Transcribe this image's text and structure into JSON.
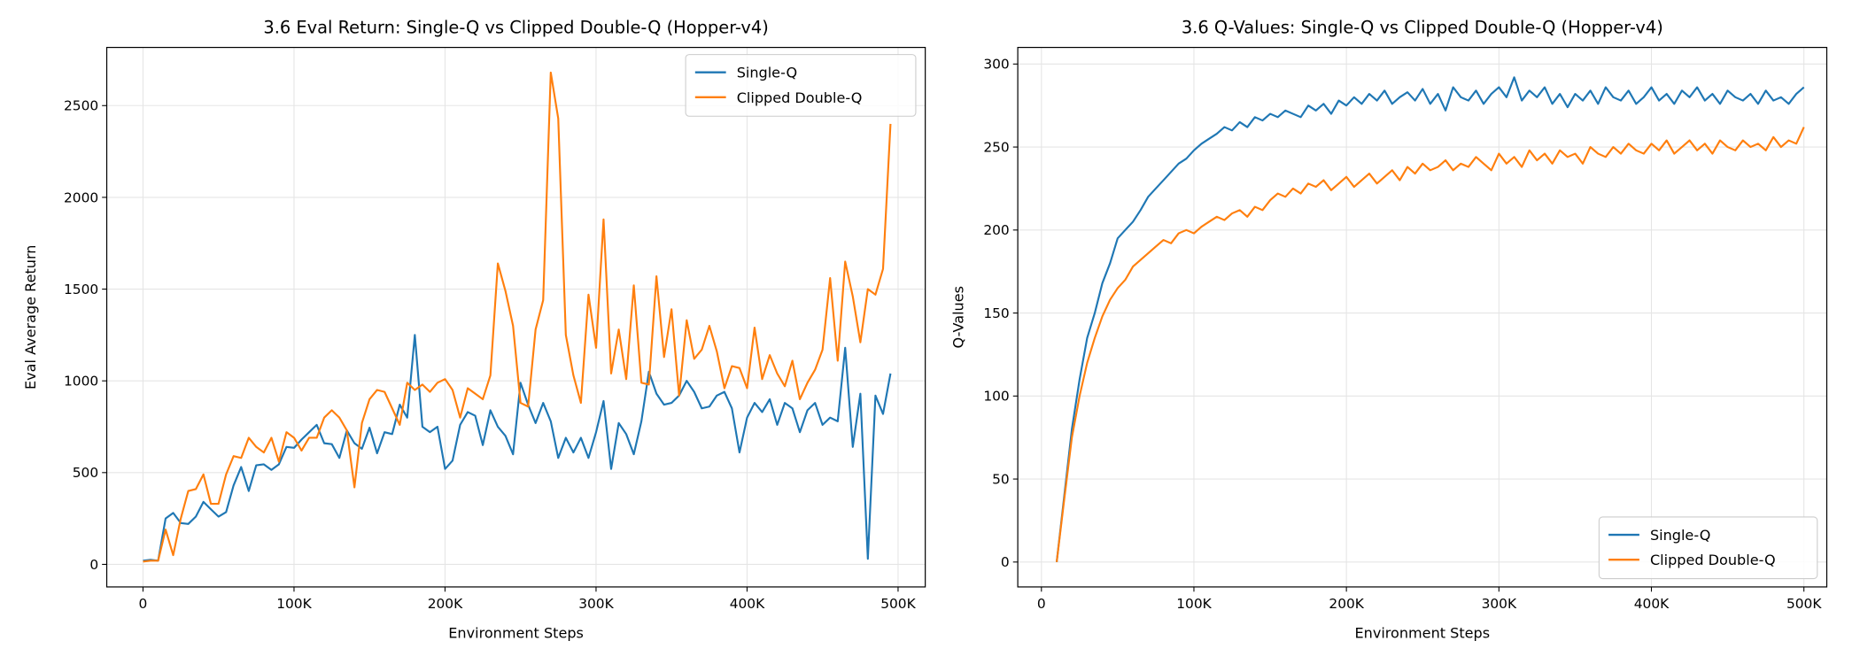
{
  "colors": {
    "single": "#1f77b4",
    "clipped": "#ff7f0e",
    "grid": "#e5e5e5"
  },
  "chart_data": [
    {
      "type": "line",
      "title": "3.6 Eval Return: Single-Q vs Clipped Double-Q (Hopper-v4)",
      "xlabel": "Environment Steps",
      "ylabel": "Eval Average Return",
      "xlim": [
        -24000,
        518000
      ],
      "ylim": [
        -123,
        2817
      ],
      "xticks": [
        0,
        100000,
        200000,
        300000,
        400000,
        500000
      ],
      "xtick_labels": [
        "0",
        "100K",
        "200K",
        "300K",
        "400K",
        "500K"
      ],
      "yticks": [
        0,
        500,
        1000,
        1500,
        2000,
        2500
      ],
      "ytick_labels": [
        "0",
        "500",
        "1000",
        "1500",
        "2000",
        "2500"
      ],
      "grid": true,
      "legend": "top-right",
      "x_start": 0,
      "x_step": 5000,
      "series": [
        {
          "name": "Single-Q",
          "values": [
            20,
            25,
            20,
            250,
            280,
            225,
            220,
            260,
            340,
            300,
            260,
            285,
            430,
            530,
            400,
            540,
            545,
            515,
            545,
            640,
            635,
            680,
            720,
            760,
            660,
            655,
            580,
            730,
            660,
            630,
            745,
            605,
            720,
            710,
            870,
            800,
            1250,
            750,
            720,
            750,
            520,
            565,
            760,
            830,
            810,
            650,
            840,
            750,
            700,
            600,
            990,
            870,
            770,
            880,
            780,
            580,
            690,
            610,
            690,
            580,
            720,
            890,
            520,
            770,
            710,
            600,
            780,
            1050,
            930,
            870,
            880,
            920,
            1000,
            940,
            850,
            860,
            920,
            940,
            850,
            610,
            800,
            880,
            830,
            900,
            760,
            880,
            850,
            720,
            840,
            880,
            760,
            800,
            780,
            1180,
            640,
            930,
            30,
            920,
            820,
            1040
          ]
        },
        {
          "name": "Clipped Double-Q",
          "values": [
            15,
            20,
            20,
            190,
            50,
            250,
            400,
            410,
            490,
            330,
            330,
            490,
            590,
            580,
            690,
            640,
            610,
            690,
            560,
            720,
            690,
            620,
            690,
            690,
            800,
            840,
            800,
            730,
            420,
            770,
            900,
            950,
            940,
            850,
            760,
            990,
            950,
            980,
            940,
            990,
            1010,
            950,
            800,
            960,
            930,
            900,
            1030,
            1640,
            1490,
            1300,
            880,
            860,
            1280,
            1440,
            2680,
            2430,
            1250,
            1030,
            880,
            1470,
            1180,
            1880,
            1040,
            1280,
            1010,
            1520,
            990,
            980,
            1570,
            1130,
            1390,
            920,
            1330,
            1120,
            1170,
            1300,
            1160,
            960,
            1080,
            1070,
            960,
            1290,
            1010,
            1140,
            1040,
            970,
            1110,
            900,
            990,
            1060,
            1170,
            1560,
            1110,
            1650,
            1460,
            1210,
            1500,
            1470,
            1610,
            2400
          ]
        }
      ]
    },
    {
      "type": "line",
      "title": "3.6 Q-Values: Single-Q vs Clipped Double-Q (Hopper-v4)",
      "xlabel": "Environment Steps",
      "ylabel": "Q-Values",
      "xlim": [
        -15500,
        515000
      ],
      "ylim": [
        -15,
        310
      ],
      "xticks": [
        0,
        100000,
        200000,
        300000,
        400000,
        500000
      ],
      "xtick_labels": [
        "0",
        "100K",
        "200K",
        "300K",
        "400K",
        "500K"
      ],
      "yticks": [
        0,
        50,
        100,
        150,
        200,
        250,
        300
      ],
      "ytick_labels": [
        "0",
        "50",
        "100",
        "150",
        "200",
        "250",
        "300"
      ],
      "grid": true,
      "legend": "bottom-right",
      "x_start": 10000,
      "x_step": 5000,
      "series": [
        {
          "name": "Single-Q",
          "values": [
            0,
            40,
            80,
            110,
            135,
            150,
            168,
            180,
            195,
            200,
            205,
            212,
            220,
            225,
            230,
            235,
            240,
            243,
            248,
            252,
            255,
            258,
            262,
            260,
            265,
            262,
            268,
            266,
            270,
            268,
            272,
            270,
            268,
            275,
            272,
            276,
            270,
            278,
            275,
            280,
            276,
            282,
            278,
            284,
            276,
            280,
            283,
            278,
            285,
            276,
            282,
            272,
            286,
            280,
            278,
            284,
            276,
            282,
            286,
            280,
            292,
            278,
            284,
            280,
            286,
            276,
            282,
            274,
            282,
            278,
            284,
            276,
            286,
            280,
            278,
            284,
            276,
            280,
            286,
            278,
            282,
            276,
            284,
            280,
            286,
            278,
            282,
            276,
            284,
            280,
            278,
            282,
            276,
            284,
            278,
            280,
            276,
            282,
            286
          ]
        },
        {
          "name": "Clipped Double-Q",
          "values": [
            0,
            38,
            75,
            100,
            120,
            135,
            148,
            158,
            165,
            170,
            178,
            182,
            186,
            190,
            194,
            192,
            198,
            200,
            198,
            202,
            205,
            208,
            206,
            210,
            212,
            208,
            214,
            212,
            218,
            222,
            220,
            225,
            222,
            228,
            226,
            230,
            224,
            228,
            232,
            226,
            230,
            234,
            228,
            232,
            236,
            230,
            238,
            234,
            240,
            236,
            238,
            242,
            236,
            240,
            238,
            244,
            240,
            236,
            246,
            240,
            244,
            238,
            248,
            242,
            246,
            240,
            248,
            244,
            246,
            240,
            250,
            246,
            244,
            250,
            246,
            252,
            248,
            246,
            252,
            248,
            254,
            246,
            250,
            254,
            248,
            252,
            246,
            254,
            250,
            248,
            254,
            250,
            252,
            248,
            256,
            250,
            254,
            252,
            262
          ]
        }
      ]
    }
  ]
}
